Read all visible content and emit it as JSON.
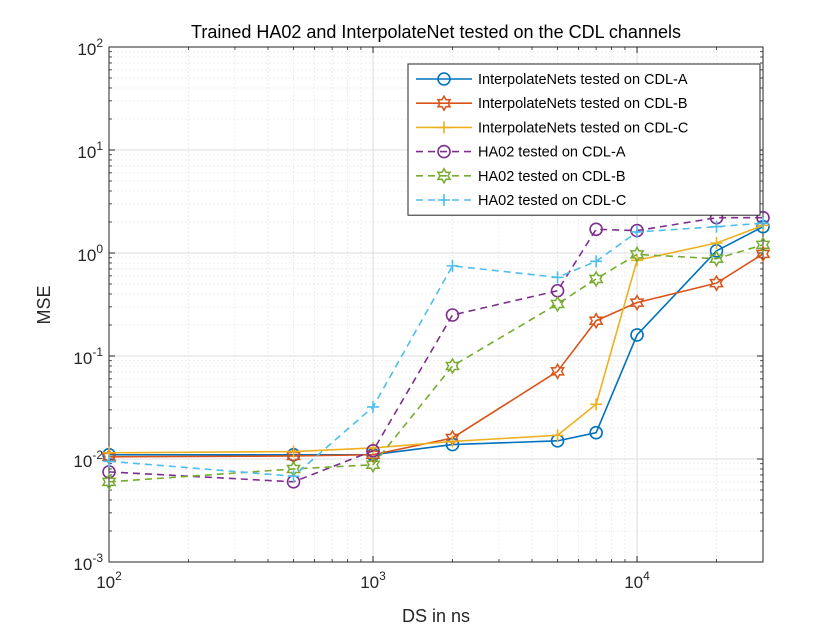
{
  "chart_data": {
    "type": "line",
    "title": "Trained HA02 and InterpolateNet tested on the CDL channels",
    "xlabel": "DS in ns",
    "ylabel": "MSE",
    "xscale": "log",
    "yscale": "log",
    "xlim": [
      100,
      30000
    ],
    "ylim": [
      0.001,
      100
    ],
    "grid": true,
    "minor_grid": true,
    "legend_location": "top-right",
    "x_ticks": [
      {
        "base": "10",
        "exp": "2",
        "value": 100
      },
      {
        "base": "10",
        "exp": "3",
        "value": 1000
      },
      {
        "base": "10",
        "exp": "4",
        "value": 10000
      }
    ],
    "y_ticks": [
      {
        "base": "10",
        "exp": "-3",
        "value": 0.001
      },
      {
        "base": "10",
        "exp": "-2",
        "value": 0.01
      },
      {
        "base": "10",
        "exp": "-1",
        "value": 0.1
      },
      {
        "base": "10",
        "exp": "0",
        "value": 1
      },
      {
        "base": "10",
        "exp": "1",
        "value": 10
      },
      {
        "base": "10",
        "exp": "2",
        "value": 100
      }
    ],
    "series": [
      {
        "name": "InterpolateNets tested on CDL-A",
        "color": "#0072BD",
        "line": "solid",
        "marker": "circle",
        "x": [
          100,
          500,
          1000,
          2000,
          5000,
          7000,
          10000,
          20000,
          30000
        ],
        "y": [
          0.011,
          0.011,
          0.011,
          0.0138,
          0.015,
          0.018,
          0.16,
          1.05,
          1.8
        ]
      },
      {
        "name": "InterpolateNets tested on CDL-B",
        "color": "#D95319",
        "line": "solid",
        "marker": "hexagram",
        "x": [
          100,
          500,
          1000,
          2000,
          5000,
          7000,
          10000,
          20000,
          30000
        ],
        "y": [
          0.0105,
          0.0107,
          0.011,
          0.016,
          0.071,
          0.22,
          0.33,
          0.51,
          0.98
        ]
      },
      {
        "name": "InterpolateNets tested on CDL-C",
        "color": "#EDB120",
        "line": "solid",
        "marker": "plus",
        "x": [
          100,
          500,
          1000,
          2000,
          5000,
          7000,
          10000,
          20000,
          30000
        ],
        "y": [
          0.0115,
          0.0118,
          0.0128,
          0.0148,
          0.017,
          0.034,
          0.85,
          1.25,
          1.85
        ]
      },
      {
        "name": "HA02 tested on CDL-A",
        "color": "#7E2F8E",
        "line": "dashed",
        "marker": "circle",
        "x": [
          100,
          500,
          1000,
          2000,
          5000,
          7000,
          10000,
          20000,
          30000
        ],
        "y": [
          0.0075,
          0.006,
          0.012,
          0.25,
          0.43,
          1.7,
          1.65,
          2.2,
          2.2
        ]
      },
      {
        "name": "HA02 tested on CDL-B",
        "color": "#77AC30",
        "line": "dashed",
        "marker": "hexagram",
        "x": [
          100,
          500,
          1000,
          2000,
          5000,
          7000,
          10000,
          20000,
          30000
        ],
        "y": [
          0.006,
          0.008,
          0.0088,
          0.08,
          0.32,
          0.56,
          0.97,
          0.88,
          1.2
        ]
      },
      {
        "name": "HA02 tested on CDL-C",
        "color": "#4DBEEE",
        "line": "dashed",
        "marker": "plus",
        "x": [
          100,
          500,
          1000,
          2000,
          5000,
          7000,
          10000,
          20000,
          30000
        ],
        "y": [
          0.0095,
          0.0068,
          0.032,
          0.75,
          0.58,
          0.83,
          1.6,
          1.8,
          1.95
        ]
      }
    ]
  }
}
